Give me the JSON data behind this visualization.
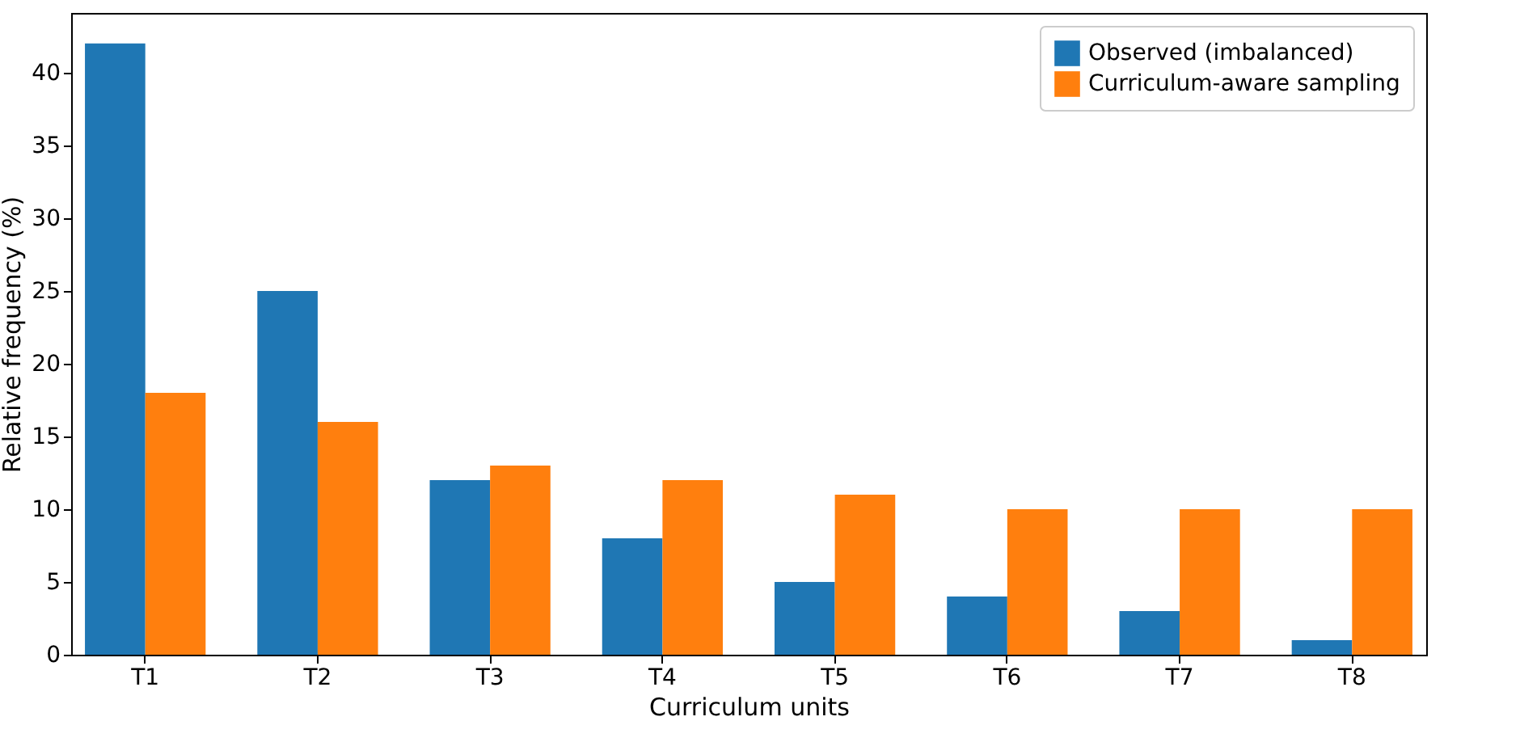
{
  "chart_data": {
    "type": "bar",
    "xlabel": "Curriculum units",
    "ylabel": "Relative frequency (%)",
    "categories": [
      "T1",
      "T2",
      "T3",
      "T4",
      "T5",
      "T6",
      "T7",
      "T8"
    ],
    "series": [
      {
        "name": "Observed (imbalanced)",
        "color": "#1f77b4",
        "values": [
          42,
          25,
          12,
          8,
          5,
          4,
          3,
          1
        ]
      },
      {
        "name": "Curriculum-aware sampling",
        "color": "#ff7f0e",
        "values": [
          18,
          16,
          13,
          12,
          11,
          10,
          10,
          10
        ]
      }
    ],
    "ylim": [
      0,
      44.1
    ],
    "yticks": [
      0,
      5,
      10,
      15,
      20,
      25,
      30,
      35,
      40
    ],
    "grid": false,
    "legend": "top right"
  }
}
